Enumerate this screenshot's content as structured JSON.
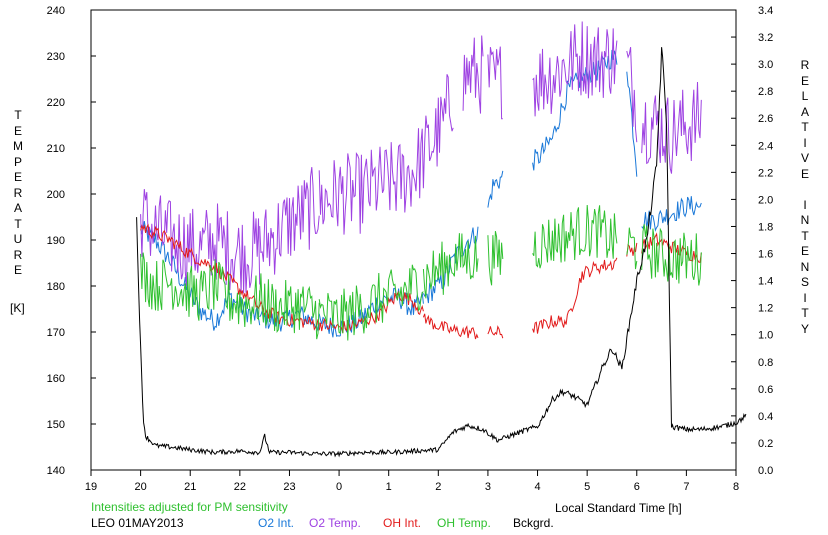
{
  "chart_data": {
    "type": "line",
    "left_axis": {
      "label": "TEMPERATURE",
      "unit": "[K]",
      "range": [
        140,
        240
      ],
      "ticks": [
        "240",
        "230",
        "220",
        "210",
        "200",
        "190",
        "180",
        "170",
        "160",
        "150",
        "140"
      ]
    },
    "right_axis": {
      "label": "RELATIVE INTENSITY",
      "range": [
        0.0,
        3.4
      ],
      "ticks": [
        "3.4",
        "3.2",
        "3.0",
        "2.8",
        "2.6",
        "2.4",
        "2.2",
        "2.0",
        "1.8",
        "1.6",
        "1.4",
        "1.2",
        "1.0",
        "0.8",
        "0.6",
        "0.4",
        "0.2",
        "0.0"
      ]
    },
    "x_axis": {
      "label": "Local Standard Time [h]",
      "ticks": [
        "19",
        "20",
        "21",
        "22",
        "23",
        "0",
        "1",
        "2",
        "3",
        "4",
        "5",
        "6",
        "7",
        "8"
      ],
      "range": [
        19,
        32
      ]
    },
    "note": "Intensities adjusted for PM sensitivity",
    "station": "LEO 01MAY2013",
    "series": [
      {
        "name": "O2 Int.",
        "color": "#1a78d8",
        "axis": "right",
        "points": [
          [
            20.0,
            1.78
          ],
          [
            20.3,
            1.7
          ],
          [
            20.6,
            1.55
          ],
          [
            20.9,
            1.35
          ],
          [
            21.2,
            1.18
          ],
          [
            21.5,
            1.1
          ],
          [
            21.8,
            1.28
          ],
          [
            22.1,
            1.18
          ],
          [
            22.4,
            1.12
          ],
          [
            22.8,
            1.1
          ],
          [
            23.2,
            1.15
          ],
          [
            23.6,
            1.08
          ],
          [
            24.0,
            1.05
          ],
          [
            24.4,
            1.1
          ],
          [
            24.8,
            1.25
          ],
          [
            25.2,
            1.28
          ],
          [
            25.5,
            1.18
          ],
          [
            25.8,
            1.3
          ],
          [
            26.1,
            1.4
          ],
          [
            26.3,
            1.55
          ],
          [
            26.6,
            1.7
          ],
          [
            26.9,
            1.78
          ],
          [
            27.1,
            2.1
          ],
          [
            27.4,
            2.2
          ],
          [
            27.7,
            2.25
          ],
          [
            28.0,
            2.3
          ],
          [
            28.3,
            2.45
          ],
          [
            28.6,
            2.8
          ],
          [
            28.9,
            2.9
          ],
          [
            29.2,
            2.95
          ],
          [
            29.5,
            3.05
          ],
          [
            29.8,
            3.0
          ],
          [
            30.1,
            1.85
          ],
          [
            30.4,
            1.85
          ],
          [
            30.7,
            1.9
          ],
          [
            31.0,
            1.95
          ],
          [
            31.3,
            1.95
          ]
        ],
        "segments": [
          [
            20.0,
            22.4
          ],
          [
            22.4,
            23.6
          ],
          [
            23.6,
            25.7
          ],
          [
            25.7,
            26.8
          ],
          [
            27.0,
            27.3
          ],
          [
            27.9,
            29.6
          ],
          [
            29.8,
            30.0
          ],
          [
            30.1,
            31.3
          ]
        ]
      },
      {
        "name": "O2 Temp.",
        "color": "#9e42e2",
        "axis": "left",
        "points": [
          [
            20.0,
            195
          ],
          [
            20.3,
            192
          ],
          [
            20.6,
            190
          ],
          [
            20.9,
            189
          ],
          [
            21.2,
            188
          ],
          [
            21.5,
            190
          ],
          [
            21.8,
            188
          ],
          [
            22.1,
            187
          ],
          [
            22.4,
            188
          ],
          [
            22.8,
            192
          ],
          [
            23.2,
            195
          ],
          [
            23.6,
            198
          ],
          [
            24.0,
            200
          ],
          [
            24.4,
            200
          ],
          [
            24.8,
            202
          ],
          [
            25.2,
            203
          ],
          [
            25.5,
            205
          ],
          [
            25.8,
            210
          ],
          [
            26.1,
            215
          ],
          [
            26.3,
            222
          ],
          [
            26.6,
            226
          ],
          [
            26.9,
            226
          ],
          [
            27.1,
            224
          ],
          [
            27.4,
            226
          ],
          [
            27.7,
            226
          ],
          [
            28.0,
            225
          ],
          [
            28.3,
            226
          ],
          [
            28.6,
            228
          ],
          [
            28.9,
            230
          ],
          [
            29.2,
            229
          ],
          [
            29.5,
            230
          ],
          [
            29.8,
            228
          ],
          [
            30.1,
            216
          ],
          [
            30.4,
            215
          ],
          [
            30.7,
            213
          ],
          [
            31.0,
            215
          ],
          [
            31.3,
            216
          ]
        ],
        "segments": [
          [
            20.0,
            22.4
          ],
          [
            22.4,
            23.6
          ],
          [
            23.6,
            26.3
          ],
          [
            26.5,
            26.9
          ],
          [
            27.0,
            27.3
          ],
          [
            27.9,
            29.6
          ],
          [
            29.8,
            30.0
          ],
          [
            30.1,
            31.3
          ]
        ]
      },
      {
        "name": "OH Int.",
        "color": "#e21b1b",
        "axis": "right",
        "points": [
          [
            20.0,
            1.8
          ],
          [
            20.3,
            1.75
          ],
          [
            20.6,
            1.7
          ],
          [
            20.9,
            1.62
          ],
          [
            21.2,
            1.55
          ],
          [
            21.5,
            1.5
          ],
          [
            21.8,
            1.4
          ],
          [
            22.1,
            1.3
          ],
          [
            22.4,
            1.2
          ],
          [
            22.8,
            1.12
          ],
          [
            23.2,
            1.1
          ],
          [
            23.6,
            1.08
          ],
          [
            24.0,
            1.05
          ],
          [
            24.4,
            1.08
          ],
          [
            24.8,
            1.15
          ],
          [
            25.2,
            1.3
          ],
          [
            25.5,
            1.25
          ],
          [
            25.8,
            1.1
          ],
          [
            26.1,
            1.05
          ],
          [
            26.3,
            1.03
          ],
          [
            26.6,
            1.02
          ],
          [
            26.9,
            1.0
          ],
          [
            27.1,
            1.02
          ],
          [
            27.4,
            1.0
          ],
          [
            27.7,
            1.05
          ],
          [
            28.0,
            1.05
          ],
          [
            28.3,
            1.1
          ],
          [
            28.6,
            1.1
          ],
          [
            28.9,
            1.45
          ],
          [
            29.2,
            1.5
          ],
          [
            29.5,
            1.52
          ],
          [
            29.8,
            1.62
          ],
          [
            30.1,
            1.65
          ],
          [
            30.4,
            1.7
          ],
          [
            30.7,
            1.65
          ],
          [
            31.0,
            1.6
          ],
          [
            31.3,
            1.58
          ]
        ],
        "segments": [
          [
            20.0,
            22.4
          ],
          [
            22.4,
            23.6
          ],
          [
            23.6,
            25.7
          ],
          [
            25.7,
            26.8
          ],
          [
            27.0,
            27.3
          ],
          [
            27.9,
            29.6
          ],
          [
            29.8,
            30.0
          ],
          [
            30.1,
            31.3
          ]
        ]
      },
      {
        "name": "OH Temp.",
        "color": "#2fc02f",
        "axis": "left",
        "points": [
          [
            20.0,
            183
          ],
          [
            20.3,
            180
          ],
          [
            20.6,
            181
          ],
          [
            20.9,
            179
          ],
          [
            21.2,
            178
          ],
          [
            21.5,
            180
          ],
          [
            21.8,
            177
          ],
          [
            22.1,
            176
          ],
          [
            22.4,
            177
          ],
          [
            22.8,
            175
          ],
          [
            23.2,
            176
          ],
          [
            23.6,
            174
          ],
          [
            24.0,
            173
          ],
          [
            24.4,
            175
          ],
          [
            24.8,
            177
          ],
          [
            25.2,
            178
          ],
          [
            25.5,
            180
          ],
          [
            25.8,
            182
          ],
          [
            26.1,
            184
          ],
          [
            26.3,
            186
          ],
          [
            26.6,
            186
          ],
          [
            26.9,
            187
          ],
          [
            27.1,
            186
          ],
          [
            27.4,
            187
          ],
          [
            27.7,
            188
          ],
          [
            28.0,
            189
          ],
          [
            28.3,
            190
          ],
          [
            28.6,
            191
          ],
          [
            28.9,
            192
          ],
          [
            29.2,
            192
          ],
          [
            29.5,
            190
          ],
          [
            29.8,
            189
          ],
          [
            30.1,
            188
          ],
          [
            30.4,
            187
          ],
          [
            30.7,
            186
          ],
          [
            31.0,
            186
          ],
          [
            31.3,
            186
          ]
        ],
        "segments": [
          [
            20.0,
            22.4
          ],
          [
            22.4,
            23.6
          ],
          [
            23.6,
            25.7
          ],
          [
            25.7,
            26.8
          ],
          [
            27.0,
            27.3
          ],
          [
            27.9,
            29.6
          ],
          [
            29.8,
            30.0
          ],
          [
            30.1,
            31.3
          ]
        ]
      },
      {
        "name": "Bckgrd.",
        "color": "#000000",
        "axis": "right",
        "points": [
          [
            19.92,
            1.85
          ],
          [
            20.0,
            0.9
          ],
          [
            20.05,
            0.4
          ],
          [
            20.1,
            0.25
          ],
          [
            20.3,
            0.18
          ],
          [
            20.6,
            0.17
          ],
          [
            21.0,
            0.15
          ],
          [
            21.5,
            0.13
          ],
          [
            22.0,
            0.14
          ],
          [
            22.4,
            0.13
          ],
          [
            22.5,
            0.25
          ],
          [
            22.6,
            0.13
          ],
          [
            23.0,
            0.13
          ],
          [
            23.5,
            0.12
          ],
          [
            24.0,
            0.12
          ],
          [
            24.5,
            0.13
          ],
          [
            25.0,
            0.13
          ],
          [
            25.5,
            0.14
          ],
          [
            26.0,
            0.15
          ],
          [
            26.3,
            0.28
          ],
          [
            26.6,
            0.33
          ],
          [
            26.9,
            0.3
          ],
          [
            27.2,
            0.22
          ],
          [
            27.5,
            0.26
          ],
          [
            27.8,
            0.3
          ],
          [
            28.0,
            0.32
          ],
          [
            28.3,
            0.52
          ],
          [
            28.5,
            0.58
          ],
          [
            28.7,
            0.55
          ],
          [
            29.0,
            0.48
          ],
          [
            29.3,
            0.75
          ],
          [
            29.5,
            0.9
          ],
          [
            29.7,
            0.75
          ],
          [
            30.0,
            1.4
          ],
          [
            30.2,
            1.7
          ],
          [
            30.4,
            2.25
          ],
          [
            30.5,
            3.1
          ],
          [
            30.6,
            2.6
          ],
          [
            30.7,
            0.32
          ],
          [
            30.85,
            0.31
          ],
          [
            31.0,
            0.3
          ],
          [
            31.3,
            0.3
          ],
          [
            31.7,
            0.32
          ],
          [
            32.0,
            0.35
          ],
          [
            32.2,
            0.4
          ]
        ],
        "segments": [
          [
            19.92,
            32.2
          ]
        ]
      }
    ]
  }
}
